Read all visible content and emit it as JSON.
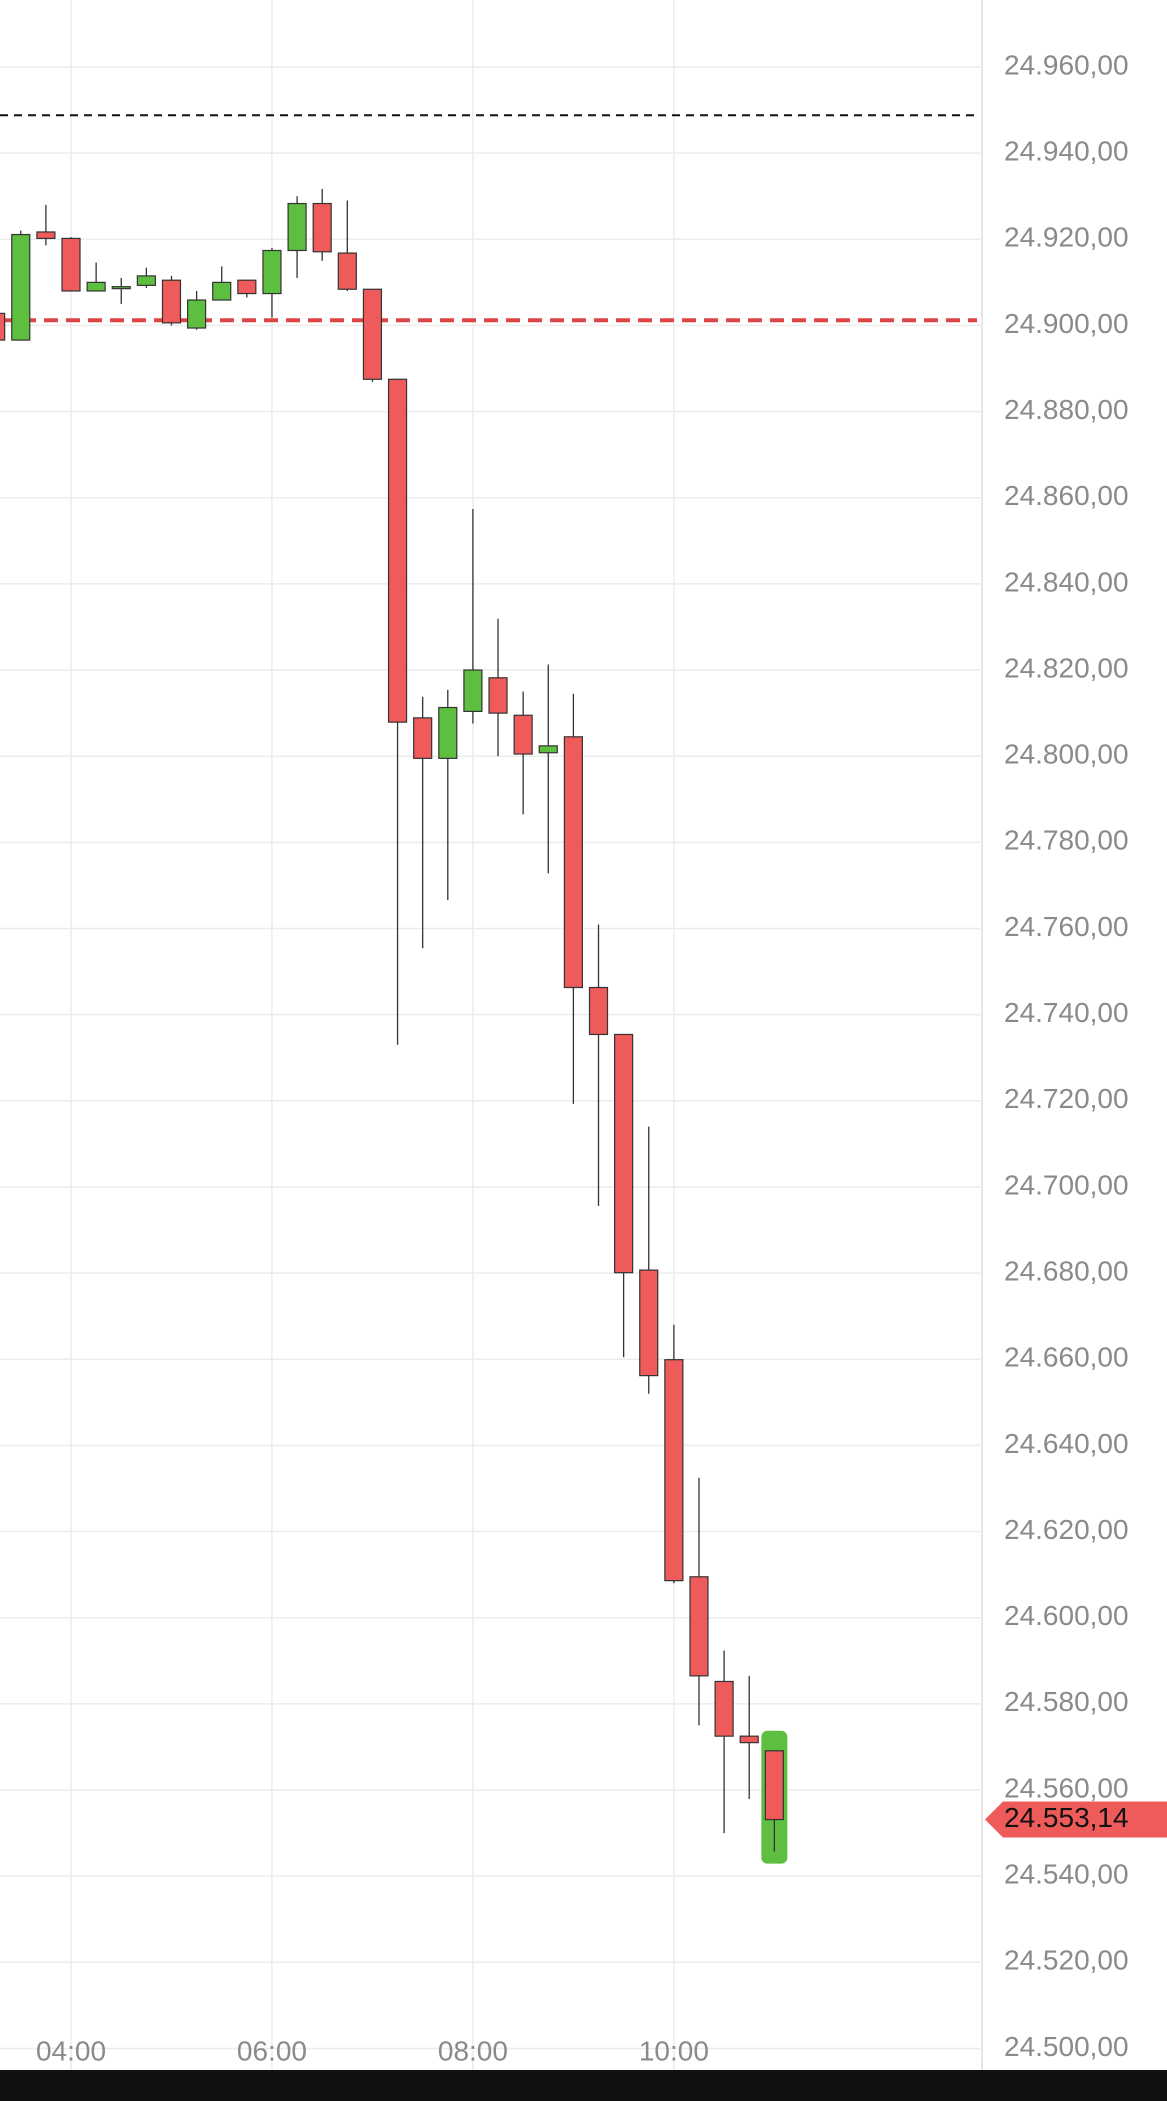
{
  "chart_data": {
    "type": "candlestick",
    "x": [
      3.25,
      3.5,
      3.75,
      4,
      4.25,
      4.5,
      4.75,
      5,
      5.25,
      5.5,
      5.75,
      6,
      6.25,
      6.5,
      6.75,
      7,
      7.25,
      7.5,
      7.75,
      8,
      8.25,
      8.5,
      8.75,
      9,
      9.25,
      9.5,
      9.75,
      10,
      10.25,
      10.5,
      10.75,
      11
    ],
    "open": [
      24902.8,
      24896.6,
      24921.7,
      24920.2,
      24908,
      24909,
      24909.3,
      24910.5,
      24899.4,
      24905.9,
      24910.5,
      24907.4,
      24917.4,
      24928.3,
      24916.8,
      24908.4,
      24887.5,
      24808.9,
      24799.5,
      24810.4,
      24818.2,
      24809.5,
      24800.8,
      24804.5,
      24746.3,
      24735.4,
      24680.7,
      24659.9,
      24609.5,
      24585.2,
      24572.5,
      24569.1
    ],
    "high": [
      24903,
      24922,
      24928,
      24920.5,
      24914.6,
      24911,
      24913.4,
      24911.5,
      24908,
      24913.7,
      24910.5,
      24918,
      24930,
      24931.7,
      24929,
      24908.4,
      24887.5,
      24813.8,
      24815.4,
      24857.4,
      24831.9,
      24815,
      24821.3,
      24814.5,
      24760.9,
      24735.4,
      24714,
      24668,
      24632.5,
      24592.4,
      24586.5,
      24569.1
    ],
    "low": [
      24896,
      24896.6,
      24918.6,
      24908,
      24908,
      24905,
      24908.7,
      24900,
      24899,
      24905.9,
      24906.5,
      24901.8,
      24911,
      24915,
      24908,
      24886.9,
      24733,
      24755.4,
      24766.6,
      24807.6,
      24800,
      24786.5,
      24772.8,
      24719.3,
      24695.6,
      24660.5,
      24652,
      24608,
      24575,
      24550,
      24557.9,
      24545.7
    ],
    "close": [
      24896.6,
      24921.1,
      24920.2,
      24908,
      24910,
      24909,
      24911.5,
      24900.6,
      24905.9,
      24910,
      24907.4,
      24917.4,
      24928.3,
      24917.1,
      24908.4,
      24887.5,
      24807.9,
      24799.5,
      24811.3,
      24820,
      24810,
      24800.5,
      24802.4,
      24746.3,
      24735.4,
      24680.1,
      24656.2,
      24608.6,
      24586.5,
      24572.5,
      24571,
      24553.14
    ],
    "up_color": "#5dbe3f",
    "down_color": "#ef5b5b",
    "xlim": [
      3.2933,
      13.0667
    ],
    "ylim": [
      24495,
      24975.55
    ],
    "xticks": [
      {
        "value": 4,
        "label": "04:00"
      },
      {
        "value": 6,
        "label": "06:00"
      },
      {
        "value": 8,
        "label": "08:00"
      },
      {
        "value": 10,
        "label": "10:00"
      }
    ],
    "yticks": [
      {
        "value": 24500,
        "label": "24.500,00"
      },
      {
        "value": 24520,
        "label": "24.520,00"
      },
      {
        "value": 24540,
        "label": "24.540,00"
      },
      {
        "value": 24560,
        "label": "24.560,00"
      },
      {
        "value": 24580,
        "label": "24.580,00"
      },
      {
        "value": 24600,
        "label": "24.600,00"
      },
      {
        "value": 24620,
        "label": "24.620,00"
      },
      {
        "value": 24640,
        "label": "24.640,00"
      },
      {
        "value": 24660,
        "label": "24.660,00"
      },
      {
        "value": 24680,
        "label": "24.680,00"
      },
      {
        "value": 24700,
        "label": "24.700,00"
      },
      {
        "value": 24720,
        "label": "24.720,00"
      },
      {
        "value": 24740,
        "label": "24.740,00"
      },
      {
        "value": 24760,
        "label": "24.760,00"
      },
      {
        "value": 24780,
        "label": "24.780,00"
      },
      {
        "value": 24800,
        "label": "24.800,00"
      },
      {
        "value": 24820,
        "label": "24.820,00"
      },
      {
        "value": 24840,
        "label": "24.840,00"
      },
      {
        "value": 24860,
        "label": "24.860,00"
      },
      {
        "value": 24880,
        "label": "24.880,00"
      },
      {
        "value": 24900,
        "label": "24.900,00"
      },
      {
        "value": 24920,
        "label": "24.920,00"
      },
      {
        "value": 24940,
        "label": "24.940,00"
      },
      {
        "value": 24960,
        "label": "24.960,00"
      }
    ],
    "grid": true,
    "reference_lines": [
      {
        "value": 24948.8,
        "color": "#111111",
        "width": 2
      },
      {
        "value": 24901.2,
        "color": "#dd4444",
        "width": 4
      }
    ],
    "last_price": {
      "value": 24553.14,
      "label": "24.553,14",
      "color": "#ef5b5b",
      "highlight": "#5dbe3f"
    }
  }
}
